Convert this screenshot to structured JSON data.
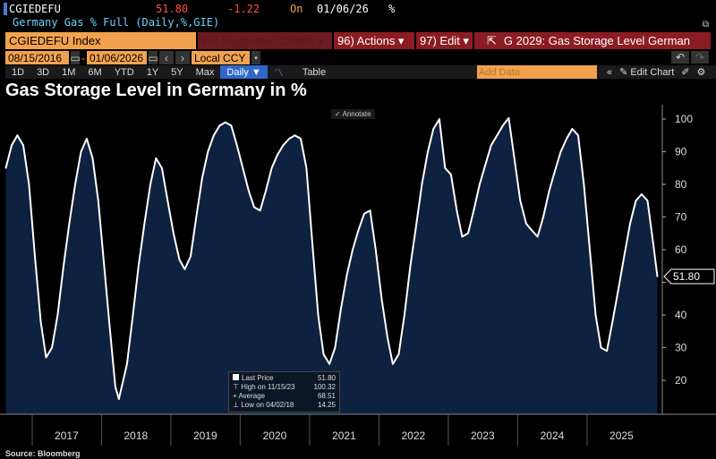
{
  "header": {
    "ticker": "CGIEDEFU",
    "last": "51.80",
    "change": "-1.22",
    "on_label": "On",
    "date": "01/06/26",
    "unit": "%",
    "description": "Germany Gas % Full (Daily,%,GIE)"
  },
  "toolbar": {
    "security": "CGIEDEFU Index",
    "suggested": "94) Suggested Charts ▾",
    "actions": "96) Actions ▾",
    "edit": "97) Edit ▾",
    "chart_name": "G 2029: Gas Storage Level German"
  },
  "range": {
    "start": "08/15/2016",
    "end": "01/06/2026",
    "currency": "Local CCY",
    "add_data_placeholder": "Add Data",
    "edit_chart": "Edit Chart"
  },
  "periods": [
    "1D",
    "3D",
    "1M",
    "6M",
    "YTD",
    "1Y",
    "5Y",
    "Max"
  ],
  "frequency": "Daily ▼",
  "table_label": "Table",
  "annotate": "Annotate",
  "source": "Source: Bloomberg",
  "colors": {
    "line": "#ffffff",
    "fill": "#0f2140",
    "toolbar_orange": "#f2a24e",
    "toolbar_red": "#8c1c24",
    "price": "#ff4a4a"
  },
  "legend": [
    {
      "label": "Last Price",
      "value": "51.80"
    },
    {
      "label": "High on 11/15/23",
      "value": "100.32"
    },
    {
      "label": "Average",
      "value": "68.51"
    },
    {
      "label": "Low on 04/02/18",
      "value": "14.25"
    }
  ],
  "chart_data": {
    "type": "area",
    "title": "Gas Storage Level in Germany in %",
    "xlabel": "",
    "ylabel": "",
    "ylim": [
      9.6,
      104.4
    ],
    "grid": false,
    "legend_position": "bottom-left",
    "y_ticks": [
      20,
      30,
      40,
      50,
      60,
      70,
      80,
      90,
      100
    ],
    "x_tick_labels": [
      "2017",
      "2018",
      "2019",
      "2020",
      "2021",
      "2022",
      "2023",
      "2024",
      "2025"
    ],
    "last_value_label": "51.80",
    "x": [
      "2016-08-15",
      "2016-09-15",
      "2016-10-15",
      "2016-11-15",
      "2016-12-15",
      "2017-01-15",
      "2017-02-15",
      "2017-03-15",
      "2017-04-15",
      "2017-05-15",
      "2017-06-15",
      "2017-07-15",
      "2017-08-15",
      "2017-09-15",
      "2017-10-15",
      "2017-11-15",
      "2017-12-15",
      "2018-01-15",
      "2018-02-15",
      "2018-03-15",
      "2018-04-02",
      "2018-05-15",
      "2018-06-15",
      "2018-07-15",
      "2018-08-15",
      "2018-09-15",
      "2018-10-15",
      "2018-11-15",
      "2018-12-15",
      "2019-01-15",
      "2019-02-15",
      "2019-03-15",
      "2019-04-15",
      "2019-05-15",
      "2019-06-15",
      "2019-07-15",
      "2019-08-15",
      "2019-09-15",
      "2019-10-15",
      "2019-11-15",
      "2019-12-15",
      "2020-01-15",
      "2020-02-15",
      "2020-03-15",
      "2020-04-15",
      "2020-05-15",
      "2020-06-15",
      "2020-07-15",
      "2020-08-15",
      "2020-09-15",
      "2020-10-15",
      "2020-11-15",
      "2020-12-15",
      "2021-01-15",
      "2021-02-15",
      "2021-03-15",
      "2021-04-15",
      "2021-05-15",
      "2021-06-15",
      "2021-07-15",
      "2021-08-15",
      "2021-09-15",
      "2021-10-15",
      "2021-11-15",
      "2021-12-15",
      "2022-01-15",
      "2022-02-15",
      "2022-03-15",
      "2022-04-15",
      "2022-05-15",
      "2022-06-15",
      "2022-07-15",
      "2022-08-15",
      "2022-09-15",
      "2022-10-15",
      "2022-11-15",
      "2022-12-15",
      "2023-01-15",
      "2023-02-15",
      "2023-03-15",
      "2023-04-15",
      "2023-05-15",
      "2023-06-15",
      "2023-07-15",
      "2023-08-15",
      "2023-09-15",
      "2023-10-15",
      "2023-11-15",
      "2023-12-15",
      "2024-01-15",
      "2024-02-15",
      "2024-03-15",
      "2024-04-15",
      "2024-05-15",
      "2024-06-15",
      "2024-07-15",
      "2024-08-15",
      "2024-09-15",
      "2024-10-15",
      "2024-11-15",
      "2024-12-15",
      "2025-01-15",
      "2025-02-15",
      "2025-03-15",
      "2025-04-15",
      "2025-05-15",
      "2025-06-15",
      "2025-07-15",
      "2025-08-15",
      "2025-09-15",
      "2025-10-15",
      "2025-11-15",
      "2025-12-15",
      "2026-01-06"
    ],
    "values": [
      85,
      92,
      95,
      92,
      80,
      58,
      38,
      27,
      30,
      40,
      55,
      68,
      80,
      90,
      94,
      88,
      75,
      55,
      35,
      18,
      14.25,
      25,
      40,
      55,
      68,
      80,
      88,
      85,
      75,
      65,
      57,
      54,
      58,
      70,
      82,
      90,
      95,
      98,
      99,
      98,
      92,
      85,
      78,
      73,
      72,
      78,
      85,
      89,
      92,
      94,
      95,
      94,
      85,
      62,
      40,
      28,
      25,
      30,
      42,
      52,
      60,
      66,
      71,
      72,
      60,
      45,
      33,
      25,
      28,
      40,
      55,
      67,
      80,
      90,
      97,
      100,
      85,
      83,
      72,
      64,
      65,
      72,
      80,
      86,
      92,
      95,
      98,
      100.32,
      88,
      75,
      68,
      66,
      64,
      70,
      78,
      84,
      90,
      94,
      97,
      95,
      80,
      60,
      40,
      30,
      29,
      38,
      48,
      58,
      68,
      75,
      77,
      75,
      62,
      51.8
    ]
  }
}
